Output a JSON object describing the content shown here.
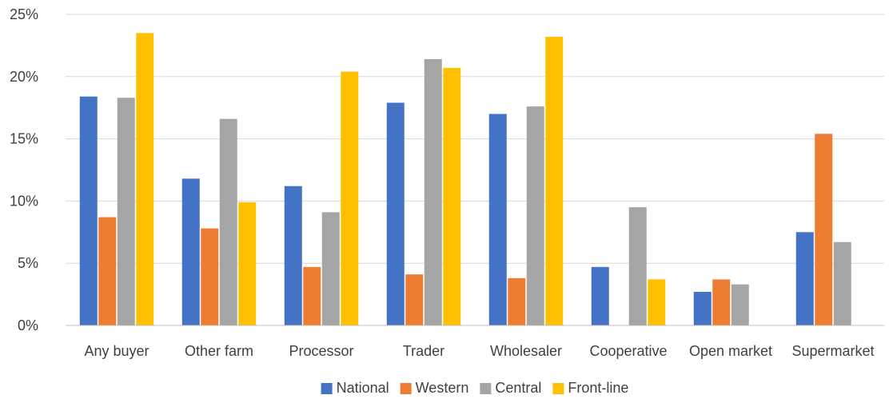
{
  "chart_data": {
    "type": "bar",
    "title": "",
    "xlabel": "",
    "ylabel": "",
    "ylim": [
      0,
      25
    ],
    "y_ticks": [
      "0%",
      "5%",
      "10%",
      "15%",
      "20%",
      "25%"
    ],
    "y_tick_values": [
      0,
      5,
      10,
      15,
      20,
      25
    ],
    "grid": true,
    "legend_position": "bottom",
    "categories": [
      "Any buyer",
      "Other farm",
      "Processor",
      "Trader",
      "Wholesaler",
      "Cooperative",
      "Open market",
      "Supermarket"
    ],
    "series": [
      {
        "name": "National",
        "color": "#4472c4",
        "values": [
          18.4,
          11.8,
          11.2,
          17.9,
          17.0,
          4.7,
          2.7,
          7.5
        ]
      },
      {
        "name": "Western",
        "color": "#ed7d31",
        "values": [
          8.7,
          7.8,
          4.7,
          4.1,
          3.8,
          null,
          3.7,
          15.4
        ]
      },
      {
        "name": "Central",
        "color": "#a5a5a5",
        "values": [
          18.3,
          16.6,
          9.1,
          21.4,
          17.6,
          9.5,
          3.3,
          6.7
        ]
      },
      {
        "name": "Front-line",
        "color": "#ffc000",
        "values": [
          23.5,
          9.9,
          20.4,
          20.7,
          23.2,
          3.7,
          null,
          null
        ]
      }
    ]
  }
}
